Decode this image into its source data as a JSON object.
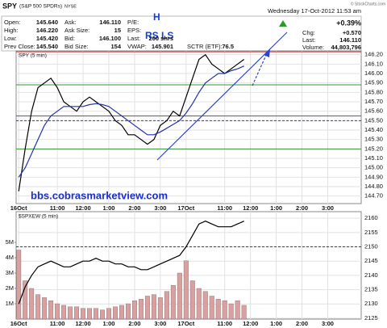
{
  "header": {
    "symbol": "SPY",
    "name": "(S&P 500 SPDRs)",
    "exchange": "NYSE",
    "date": "Wednesday 17-Oct-2012 11:53 am",
    "credit": "© StockCharts.com",
    "change": "+0.39%",
    "quote": [
      {
        "label": "Open:",
        "value": "145.640"
      },
      {
        "label": "High:",
        "value": "146.220"
      },
      {
        "label": "Low:",
        "value": "145.420"
      },
      {
        "label": "Prev Close:",
        "value": "145.540"
      },
      {
        "label": "Ask:",
        "value": "146.110"
      },
      {
        "label": "Ask Size:",
        "value": "15"
      },
      {
        "label": "Bid:",
        "value": "146.100"
      },
      {
        "label": "Bid Size:",
        "value": "154"
      },
      {
        "label": "P/E:"
      },
      {
        "label": "EPS:"
      },
      {
        "label": "Last:",
        "value": "200 shrs"
      },
      {
        "label": "VWAP:",
        "value": "145.901"
      },
      {
        "label": "SCTR (ETF):",
        "value": "76.5"
      },
      {
        "label": "Chg:",
        "value": "+0.570"
      },
      {
        "label": "Last:",
        "value": "146.110"
      },
      {
        "label": "Volume:",
        "value": "44,803,796"
      }
    ]
  },
  "annotations": [
    "H",
    "RS LS",
    "bbs.cobrasmarketview.com"
  ],
  "chart_data": [
    {
      "type": "line",
      "title": "SPY (5 min)",
      "grid": true,
      "x": [
        0,
        0.25,
        0.5,
        0.75,
        1,
        1.25,
        1.5,
        1.75,
        2,
        2.25,
        2.5,
        2.75,
        3,
        3.25,
        3.5,
        3.75,
        4,
        4.25,
        4.5,
        4.75,
        5,
        5.25,
        5.5,
        5.75,
        6,
        6.25,
        6.5,
        6.75,
        7,
        7.25,
        7.5,
        7.75,
        8,
        8.25,
        8.5,
        8.75
      ],
      "series": [
        {
          "color": "#000000",
          "values": [
            144.75,
            145.2,
            145.6,
            145.85,
            145.9,
            145.95,
            145.85,
            145.7,
            145.65,
            145.6,
            145.7,
            145.75,
            145.7,
            145.65,
            145.6,
            145.5,
            145.45,
            145.35,
            145.35,
            145.3,
            145.25,
            145.3,
            145.45,
            145.5,
            145.6,
            145.55,
            145.75,
            145.95,
            146.15,
            146.2,
            146.1,
            146.05,
            146.0,
            146.05,
            146.1,
            146.15
          ]
        },
        {
          "color": "#2233aa",
          "values": [
            144.9,
            145.0,
            145.15,
            145.3,
            145.45,
            145.55,
            145.6,
            145.65,
            145.65,
            145.65,
            145.65,
            145.67,
            145.68,
            145.67,
            145.65,
            145.6,
            145.55,
            145.5,
            145.45,
            145.4,
            145.35,
            145.35,
            145.38,
            145.42,
            145.46,
            145.5,
            145.58,
            145.68,
            145.8,
            145.9,
            145.95,
            146.0,
            146.0,
            146.03,
            146.05,
            146.08
          ]
        }
      ],
      "levels": [
        {
          "value": 146.23,
          "color": "#cc3333"
        },
        {
          "value": 145.88,
          "color": "#339933"
        },
        {
          "value": 145.55,
          "color": "#cc3333"
        },
        {
          "value": 145.5,
          "color": "#3333cc",
          "dashed": true
        },
        {
          "value": 145.2,
          "color": "#339933"
        }
      ],
      "xlim": [
        -0.1,
        13.3
      ],
      "xticks": [
        {
          "value": 0,
          "label": "16Oct"
        },
        {
          "value": 1.5,
          "label": "11:00"
        },
        {
          "value": 2.5,
          "label": "12:00"
        },
        {
          "value": 3.5,
          "label": "1:00"
        },
        {
          "value": 4.5,
          "label": "2:00"
        },
        {
          "value": 5.5,
          "label": "3:00"
        },
        {
          "value": 6.5,
          "label": "17Oct"
        },
        {
          "value": 8,
          "label": "11:00"
        },
        {
          "value": 9,
          "label": "12:00"
        },
        {
          "value": 10,
          "label": "1:00"
        },
        {
          "value": 11,
          "label": "2:00"
        },
        {
          "value": 12,
          "label": "3:00"
        }
      ],
      "ylim": [
        144.62,
        146.24
      ],
      "yticks": [
        {
          "value": 144.7,
          "label": "144.70"
        },
        {
          "value": 144.8,
          "label": "144.80"
        },
        {
          "value": 144.9,
          "label": "144.90"
        },
        {
          "value": 145.0,
          "label": "145.00"
        },
        {
          "value": 145.1,
          "label": "145.10"
        },
        {
          "value": 145.2,
          "label": "145.20"
        },
        {
          "value": 145.3,
          "label": "145.30"
        },
        {
          "value": 145.4,
          "label": "145.40"
        },
        {
          "value": 145.5,
          "label": "145.50"
        },
        {
          "value": 145.6,
          "label": "145.60"
        },
        {
          "value": 145.7,
          "label": "145.70"
        },
        {
          "value": 145.8,
          "label": "145.80"
        },
        {
          "value": 145.9,
          "label": "145.90"
        },
        {
          "value": 146.0,
          "label": "146.00"
        },
        {
          "value": 146.1,
          "label": "146.10"
        },
        {
          "value": 146.2,
          "label": "146.20"
        }
      ]
    },
    {
      "type": "bar",
      "title": "$SPXEW (5 min)",
      "grid": true,
      "x": [
        0,
        0.25,
        0.5,
        0.75,
        1,
        1.25,
        1.5,
        1.75,
        2,
        2.25,
        2.5,
        2.75,
        3,
        3.25,
        3.5,
        3.75,
        4,
        4.25,
        4.5,
        4.75,
        5,
        5.25,
        5.5,
        5.75,
        6,
        6.25,
        6.5,
        6.75,
        7,
        7.25,
        7.5,
        7.75,
        8,
        8.25,
        8.5,
        8.75
      ],
      "series": [
        {
          "color": "#d9a0a0",
          "values": [
            4500000,
            2500000,
            2000000,
            1600000,
            1400000,
            1200000,
            1000000,
            900000,
            800000,
            800000,
            700000,
            700000,
            700000,
            600000,
            700000,
            800000,
            900000,
            1000000,
            1200000,
            1300000,
            1500000,
            1600000,
            1400000,
            1800000,
            2200000,
            3000000,
            3800000,
            2500000,
            2000000,
            1800000,
            1500000,
            1300000,
            1200000,
            1000000,
            1200000,
            900000
          ]
        },
        {
          "type": "line",
          "axis": "y2",
          "color": "#000000",
          "values": [
            2130,
            2136,
            2140,
            2143,
            2144,
            2145,
            2144,
            2143,
            2143,
            2144,
            2145,
            2145,
            2146,
            2145,
            2145,
            2144,
            2144,
            2143,
            2143,
            2142,
            2142,
            2143,
            2144,
            2145,
            2146,
            2147,
            2150,
            2154,
            2158,
            2159,
            2158,
            2157,
            2157,
            2157,
            2158,
            2159
          ]
        }
      ],
      "levels": [
        {
          "value": 2150,
          "color": "#3333cc",
          "dashed": true,
          "axis": "y2"
        }
      ],
      "xlim": [
        -0.1,
        13.3
      ],
      "xticks": [
        {
          "value": 0,
          "label": "16Oct"
        },
        {
          "value": 1.5,
          "label": "11:00"
        },
        {
          "value": 2.5,
          "label": "12:00"
        },
        {
          "value": 3.5,
          "label": "1:00"
        },
        {
          "value": 4.5,
          "label": "2:00"
        },
        {
          "value": 5.5,
          "label": "3:00"
        },
        {
          "value": 6.5,
          "label": "17Oct"
        },
        {
          "value": 8,
          "label": "11:00"
        },
        {
          "value": 9,
          "label": "12:00"
        },
        {
          "value": 10,
          "label": "1:00"
        },
        {
          "value": 11,
          "label": "2:00"
        },
        {
          "value": 12,
          "label": "3:00"
        }
      ],
      "ylim": [
        0,
        7000000
      ],
      "yticks": [
        {
          "value": 1000000,
          "label": "1M"
        },
        {
          "value": 2000000,
          "label": "2M"
        },
        {
          "value": 3000000,
          "label": "3M"
        },
        {
          "value": 4000000,
          "label": "4M"
        },
        {
          "value": 5000000,
          "label": "5M"
        }
      ],
      "y2lim": [
        2124.7,
        2162.3
      ],
      "y2ticks": [
        2125,
        2130,
        2135,
        2140,
        2145,
        2150,
        2155,
        2160
      ]
    }
  ]
}
